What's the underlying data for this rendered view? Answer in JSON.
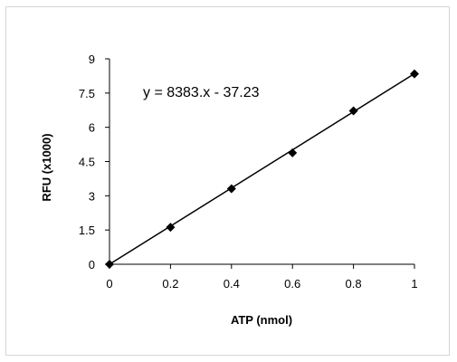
{
  "chart_data": {
    "type": "scatter",
    "title": "",
    "xlabel": "ATP (nmol)",
    "ylabel": "RFU (x1000)",
    "xlim": [
      0,
      1
    ],
    "ylim": [
      0,
      9
    ],
    "x_ticks": [
      "0",
      "0.2",
      "0.4",
      "0.6",
      "0.8",
      "1"
    ],
    "y_ticks": [
      "0",
      "1.5",
      "3",
      "4.5",
      "6",
      "7.5",
      "9"
    ],
    "grid": false,
    "legend": "none",
    "series": [
      {
        "x": [
          0,
          0.2,
          0.4,
          0.6,
          0.8,
          1.0
        ],
        "y": [
          0,
          1.62,
          3.31,
          4.88,
          6.72,
          8.34
        ],
        "marker": "diamond",
        "color": "#000000"
      }
    ],
    "trendline": {
      "equation": "y = 8383.x - 37.23",
      "type": "linear",
      "x": [
        0,
        1
      ],
      "y": [
        0,
        8.35
      ]
    }
  }
}
